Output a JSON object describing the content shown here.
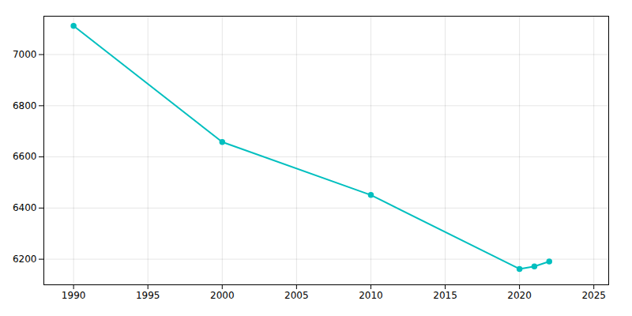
{
  "chart_data": {
    "type": "line",
    "x": [
      1990,
      2000,
      2010,
      2020,
      2021,
      2022
    ],
    "values": [
      7112,
      6658,
      6451,
      6162,
      6172,
      6191
    ],
    "color": "#00BFBF",
    "marker": "circle",
    "xlim": [
      1988,
      2026
    ],
    "ylim": [
      6100,
      7150
    ],
    "xticks": [
      1990,
      1995,
      2000,
      2005,
      2010,
      2015,
      2020,
      2025
    ],
    "yticks": [
      6200,
      6400,
      6600,
      6800,
      7000
    ],
    "grid": true
  }
}
